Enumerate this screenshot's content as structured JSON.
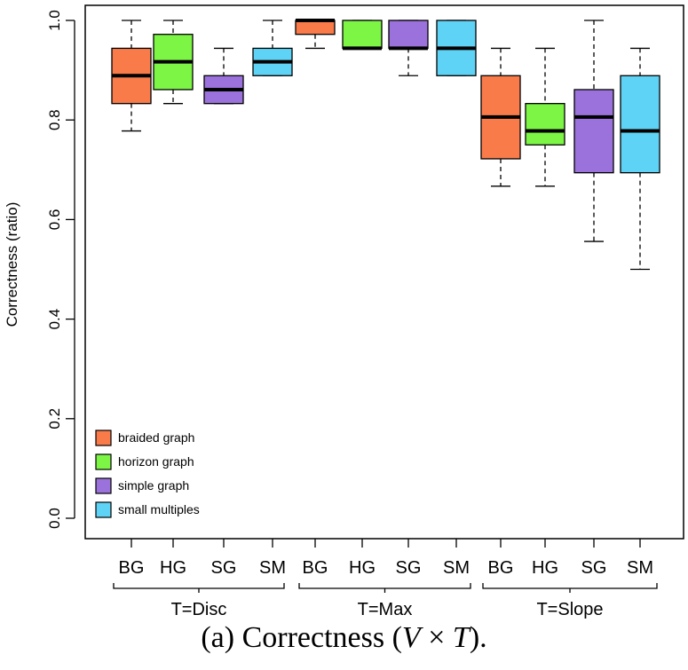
{
  "chart_data": {
    "type": "boxplot",
    "ylabel": "Correctness (ratio)",
    "ylim": [
      0,
      1
    ],
    "yticks": [
      "0.0",
      "0.2",
      "0.4",
      "0.6",
      "0.8",
      "1.0"
    ],
    "groups": [
      "T=Disc",
      "T=Max",
      "T=Slope"
    ],
    "categories": [
      "BG",
      "HG",
      "SG",
      "SM"
    ],
    "legend": {
      "position": "bottom-left",
      "entries": [
        {
          "label": "braided graph",
          "color": "#f97b4a"
        },
        {
          "label": "horizon graph",
          "color": "#7cf545"
        },
        {
          "label": "simple graph",
          "color": "#9b72dc"
        },
        {
          "label": "small multiples",
          "color": "#5fd3f5"
        }
      ]
    },
    "boxes": [
      {
        "group": "T=Disc",
        "category": "BG",
        "min": 0.778,
        "q1": 0.833,
        "median": 0.889,
        "q3": 0.944,
        "max": 1.0
      },
      {
        "group": "T=Disc",
        "category": "HG",
        "min": 0.833,
        "q1": 0.861,
        "median": 0.917,
        "q3": 0.972,
        "max": 1.0
      },
      {
        "group": "T=Disc",
        "category": "SG",
        "min": 0.833,
        "q1": 0.833,
        "median": 0.861,
        "q3": 0.889,
        "max": 0.944
      },
      {
        "group": "T=Disc",
        "category": "SM",
        "min": 0.889,
        "q1": 0.889,
        "median": 0.917,
        "q3": 0.944,
        "max": 1.0
      },
      {
        "group": "T=Max",
        "category": "BG",
        "min": 0.944,
        "q1": 0.972,
        "median": 1.0,
        "q3": 1.0,
        "max": 1.0
      },
      {
        "group": "T=Max",
        "category": "HG",
        "min": 0.944,
        "q1": 0.944,
        "median": 0.944,
        "q3": 1.0,
        "max": 1.0
      },
      {
        "group": "T=Max",
        "category": "SG",
        "min": 0.889,
        "q1": 0.944,
        "median": 0.944,
        "q3": 1.0,
        "max": 1.0
      },
      {
        "group": "T=Max",
        "category": "SM",
        "min": 0.889,
        "q1": 0.889,
        "median": 0.944,
        "q3": 1.0,
        "max": 1.0
      },
      {
        "group": "T=Slope",
        "category": "BG",
        "min": 0.667,
        "q1": 0.722,
        "median": 0.806,
        "q3": 0.889,
        "max": 0.944
      },
      {
        "group": "T=Slope",
        "category": "HG",
        "min": 0.667,
        "q1": 0.75,
        "median": 0.778,
        "q3": 0.833,
        "max": 0.944
      },
      {
        "group": "T=Slope",
        "category": "SG",
        "min": 0.556,
        "q1": 0.694,
        "median": 0.806,
        "q3": 0.861,
        "max": 1.0
      },
      {
        "group": "T=Slope",
        "category": "SM",
        "min": 0.5,
        "q1": 0.694,
        "median": 0.778,
        "q3": 0.889,
        "max": 0.944
      }
    ]
  },
  "caption": {
    "prefix": "(a)  Correctness (",
    "v": "V",
    "times": " × ",
    "t": "T",
    "suffix": ")."
  }
}
